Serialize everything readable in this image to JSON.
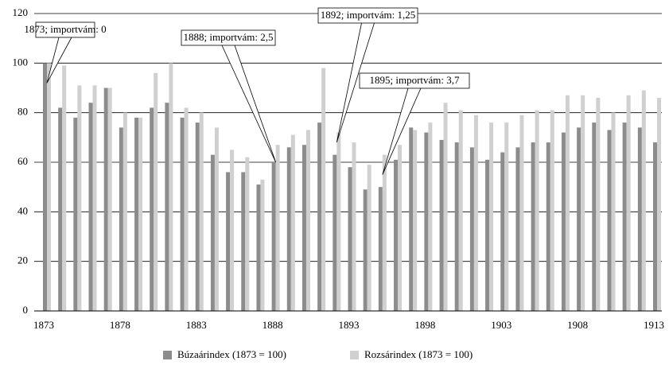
{
  "chart_data": {
    "type": "bar",
    "categories": [
      "1873",
      null,
      null,
      null,
      null,
      "1878",
      null,
      null,
      null,
      null,
      "1883",
      null,
      null,
      null,
      null,
      "1888",
      null,
      null,
      null,
      null,
      "1893",
      null,
      null,
      null,
      null,
      "1898",
      null,
      null,
      null,
      null,
      "1903",
      null,
      null,
      null,
      null,
      "1908",
      null,
      null,
      null,
      null,
      "1913"
    ],
    "series": [
      {
        "name": "Búzaárindex (1873 = 100)",
        "color": "#8c8c8c",
        "values": [
          100,
          82,
          78,
          84,
          90,
          74,
          78,
          82,
          84,
          78,
          76,
          63,
          56,
          56,
          51,
          60,
          66,
          67,
          76,
          63,
          58,
          49,
          50,
          61,
          74,
          72,
          69,
          68,
          66,
          61,
          64,
          66,
          68,
          68,
          72,
          74,
          76,
          73,
          76,
          74,
          68
        ]
      },
      {
        "name": "Rozsárindex (1873 = 100)",
        "color": "#d0d0d0",
        "values": [
          100,
          99,
          91,
          91,
          90,
          80,
          78,
          96,
          100,
          82,
          80,
          74,
          65,
          62,
          53,
          67,
          71,
          73,
          98,
          72,
          68,
          59,
          63,
          67,
          73,
          76,
          84,
          81,
          79,
          76,
          76,
          79,
          81,
          81,
          87,
          87,
          86,
          80,
          87,
          89,
          86
        ]
      }
    ],
    "ylim": [
      0,
      120
    ],
    "yticks": [
      0,
      20,
      40,
      60,
      80,
      100,
      120
    ],
    "grid": true,
    "legend": "bottom",
    "annotations": [
      {
        "text": "1873; importvám: 0",
        "x": "1873",
        "y": 92
      },
      {
        "text": "1888; importvám: 2,5",
        "x": "1888",
        "y": 60
      },
      {
        "text": "1892; importvám: 1,25",
        "x": "1892",
        "y": 68
      },
      {
        "text": "1895; importvám: 3,7",
        "x": "1895",
        "y": 55
      }
    ]
  }
}
